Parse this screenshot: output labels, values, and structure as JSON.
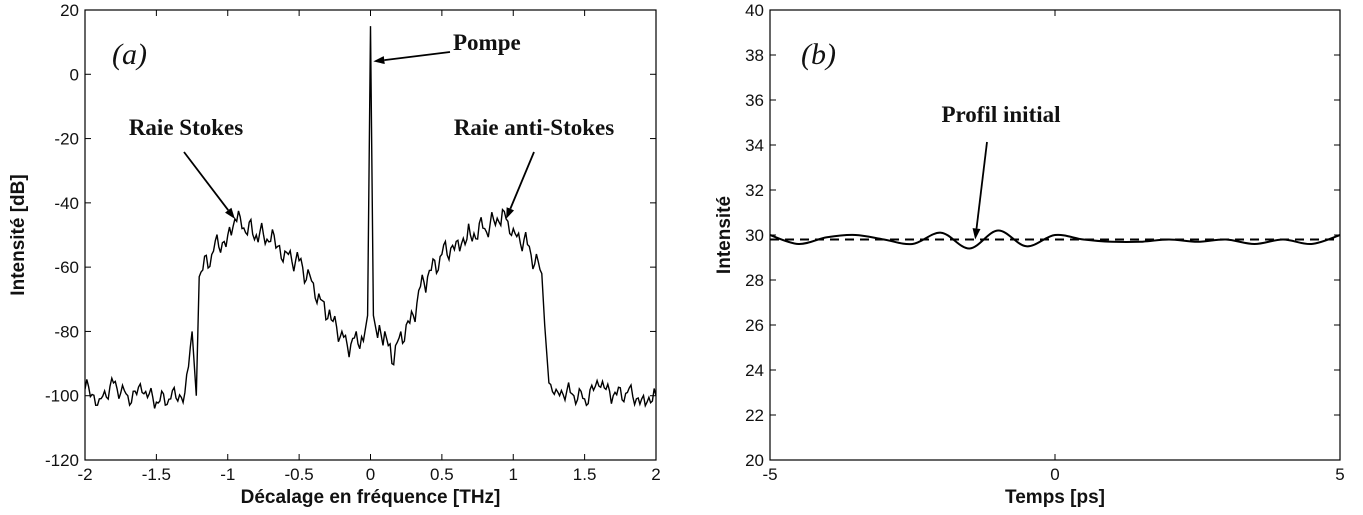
{
  "chart_data": [
    {
      "type": "line",
      "panel_label": "(a)",
      "xlabel": "Décalage en fréquence [THz]",
      "ylabel": "Intensité [dB]",
      "xlim": [
        -2,
        2
      ],
      "ylim": [
        -120,
        20
      ],
      "xticks": [
        "-2",
        "-1.5",
        "-1",
        "-0.5",
        "0",
        "0.5",
        "1",
        "1.5",
        "2"
      ],
      "yticks": [
        "20",
        "0",
        "-20",
        "-40",
        "-60",
        "-80",
        "-100",
        "-120"
      ],
      "grid": false,
      "series": [
        {
          "style": "solid",
          "color": "#000000",
          "x": [
            -2.0,
            -1.9,
            -1.8,
            -1.7,
            -1.6,
            -1.5,
            -1.4,
            -1.3,
            -1.25,
            -1.22,
            -1.2,
            -1.1,
            -1.0,
            -0.95,
            -0.9,
            -0.8,
            -0.7,
            -0.6,
            -0.5,
            -0.4,
            -0.35,
            -0.3,
            -0.2,
            -0.15,
            -0.1,
            -0.05,
            -0.02,
            0.0,
            0.02,
            0.05,
            0.1,
            0.15,
            0.2,
            0.3,
            0.35,
            0.4,
            0.5,
            0.6,
            0.7,
            0.8,
            0.9,
            0.95,
            1.0,
            1.1,
            1.2,
            1.22,
            1.25,
            1.3,
            1.4,
            1.5,
            1.6,
            1.7,
            1.8,
            1.9,
            2.0
          ],
          "y": [
            -98,
            -101,
            -96,
            -100,
            -99,
            -102,
            -101,
            -99,
            -80,
            -100,
            -63,
            -55,
            -50,
            -45,
            -48,
            -50,
            -52,
            -55,
            -58,
            -65,
            -70,
            -76,
            -80,
            -88,
            -80,
            -83,
            -75,
            15,
            -75,
            -82,
            -80,
            -90,
            -82,
            -75,
            -66,
            -63,
            -56,
            -52,
            -50,
            -48,
            -46,
            -45,
            -48,
            -53,
            -62,
            -78,
            -96,
            -98,
            -99,
            -101,
            -97,
            -100,
            -99,
            -101,
            -100
          ]
        }
      ],
      "annotations": [
        {
          "text": "Pompe",
          "x": 0.02,
          "y": 4
        },
        {
          "text": "Raie Stokes",
          "x": -0.95,
          "y": -45
        },
        {
          "text": "Raie anti-Stokes",
          "x": 0.95,
          "y": -45
        }
      ]
    },
    {
      "type": "line",
      "panel_label": "(b)",
      "xlabel": "Temps [ps]",
      "ylabel": "Intensité",
      "xlim": [
        -5,
        5
      ],
      "ylim": [
        20,
        40
      ],
      "xticks": [
        "-5",
        "0",
        "5"
      ],
      "yticks": [
        "40",
        "38",
        "36",
        "34",
        "32",
        "30",
        "28",
        "26",
        "24",
        "22",
        "20"
      ],
      "grid": false,
      "series": [
        {
          "style": "solid",
          "color": "#000000",
          "x": [
            -5.0,
            -4.5,
            -4.0,
            -3.5,
            -3.0,
            -2.5,
            -2.0,
            -1.5,
            -1.0,
            -0.5,
            0.0,
            0.5,
            1.0,
            1.5,
            2.0,
            2.5,
            3.0,
            3.5,
            4.0,
            4.5,
            5.0
          ],
          "y": [
            30.0,
            29.6,
            29.9,
            30.0,
            29.8,
            29.6,
            30.1,
            29.4,
            30.2,
            29.5,
            30.0,
            29.8,
            29.7,
            29.7,
            29.8,
            29.7,
            29.8,
            29.6,
            29.8,
            29.6,
            30.0
          ]
        },
        {
          "style": "dashed",
          "color": "#000000",
          "x": [
            -5,
            5
          ],
          "y": [
            29.8,
            29.8
          ]
        }
      ],
      "annotations": [
        {
          "text": "Profil initial",
          "x": -1.4,
          "y": 29.8
        }
      ]
    }
  ]
}
